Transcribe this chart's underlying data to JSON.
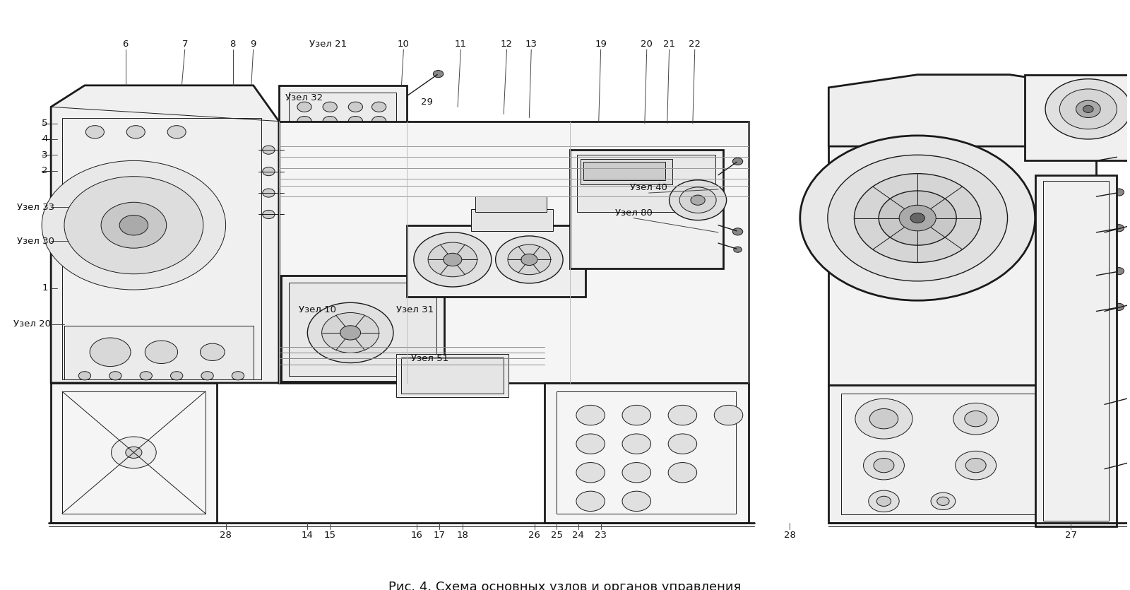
{
  "caption": "Рис. 4. Схема основных узлов и органов управления",
  "caption_fontsize": 13,
  "background_color": "#ffffff",
  "fig_width": 16.0,
  "fig_height": 8.35,
  "dpi": 100,
  "lc": "#1a1a1a",
  "lw_main": 1.2,
  "lw_thin": 0.7,
  "lw_thick": 2.0,
  "lw_med": 1.0,
  "label_fs": 9.5,
  "label_color": "#111111",
  "top_labels": [
    [
      "6",
      120,
      57
    ],
    [
      "7",
      178,
      57
    ],
    [
      "8",
      225,
      57
    ],
    [
      "9",
      245,
      57
    ],
    [
      "Узел 21",
      318,
      57
    ],
    [
      "10",
      392,
      57
    ],
    [
      "11",
      448,
      57
    ],
    [
      "12",
      493,
      57
    ],
    [
      "13",
      517,
      57
    ],
    [
      "19",
      585,
      57
    ],
    [
      "20",
      630,
      57
    ],
    [
      "21",
      652,
      57
    ],
    [
      "22",
      677,
      57
    ]
  ],
  "left_labels": [
    [
      "5",
      38,
      180
    ],
    [
      "4",
      38,
      200
    ],
    [
      "3",
      38,
      220
    ],
    [
      "2",
      38,
      240
    ],
    [
      "Узел 33",
      18,
      290
    ],
    [
      "Узел 30",
      18,
      335
    ],
    [
      "1",
      38,
      400
    ],
    [
      "Узел 20",
      12,
      450
    ]
  ],
  "mid_labels": [
    [
      "Узел 32",
      298,
      135
    ],
    [
      "29",
      415,
      140
    ],
    [
      "Узел 10",
      310,
      430
    ],
    [
      "Узел 31",
      405,
      430
    ],
    [
      "Узел 51",
      420,
      498
    ],
    [
      "Узел 40",
      630,
      260
    ],
    [
      "Узел 80",
      615,
      295
    ]
  ],
  "bottom_labels": [
    [
      "28",
      218,
      742
    ],
    [
      "14",
      298,
      742
    ],
    [
      "15",
      320,
      742
    ],
    [
      "16",
      405,
      742
    ],
    [
      "17",
      427,
      742
    ],
    [
      "18",
      450,
      742
    ],
    [
      "26",
      520,
      742
    ],
    [
      "25",
      542,
      742
    ],
    [
      "24",
      563,
      742
    ],
    [
      "23",
      585,
      742
    ],
    [
      "28",
      770,
      742
    ],
    [
      "27",
      1045,
      742
    ]
  ]
}
